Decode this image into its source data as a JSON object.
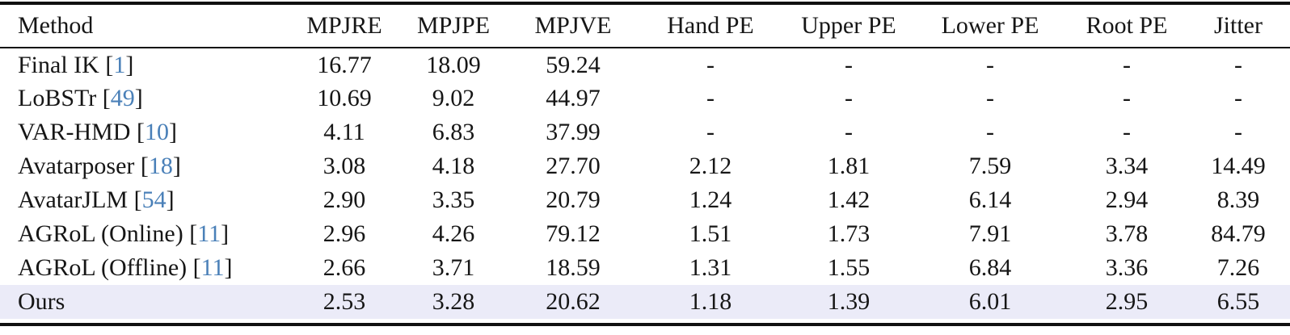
{
  "colors": {
    "citation_blue": "#4a80b8",
    "highlight_row_bg": "#ebebf8",
    "rule_color": "#101010",
    "text_color": "#161616"
  },
  "table": {
    "citation_brackets": [
      " [",
      "]"
    ],
    "columns": [
      "Method",
      "MPJRE",
      "MPJPE",
      "MPJVE",
      "Hand PE",
      "Upper PE",
      "Lower PE",
      "Root PE",
      "Jitter"
    ],
    "rows": [
      {
        "method": "Final IK",
        "citation": "1",
        "highlight": false,
        "values": [
          "16.77",
          "18.09",
          "59.24",
          "-",
          "-",
          "-",
          "-",
          "-"
        ]
      },
      {
        "method": "LoBSTr",
        "citation": "49",
        "highlight": false,
        "values": [
          "10.69",
          "9.02",
          "44.97",
          "-",
          "-",
          "-",
          "-",
          "-"
        ]
      },
      {
        "method": "VAR-HMD",
        "citation": "10",
        "highlight": false,
        "values": [
          "4.11",
          "6.83",
          "37.99",
          "-",
          "-",
          "-",
          "-",
          "-"
        ]
      },
      {
        "method": "Avatarposer",
        "citation": "18",
        "highlight": false,
        "values": [
          "3.08",
          "4.18",
          "27.70",
          "2.12",
          "1.81",
          "7.59",
          "3.34",
          "14.49"
        ]
      },
      {
        "method": "AvatarJLM",
        "citation": "54",
        "highlight": false,
        "values": [
          "2.90",
          "3.35",
          "20.79",
          "1.24",
          "1.42",
          "6.14",
          "2.94",
          "8.39"
        ]
      },
      {
        "method": "AGRoL (Online)",
        "citation": "11",
        "highlight": false,
        "values": [
          "2.96",
          "4.26",
          "79.12",
          "1.51",
          "1.73",
          "7.91",
          "3.78",
          "84.79"
        ]
      },
      {
        "method": "AGRoL (Offline)",
        "citation": "11",
        "highlight": false,
        "values": [
          "2.66",
          "3.71",
          "18.59",
          "1.31",
          "1.55",
          "6.84",
          "3.36",
          "7.26"
        ]
      },
      {
        "method": "Ours",
        "citation": null,
        "highlight": true,
        "values": [
          "2.53",
          "3.28",
          "20.62",
          "1.18",
          "1.39",
          "6.01",
          "2.95",
          "6.55"
        ]
      }
    ]
  }
}
